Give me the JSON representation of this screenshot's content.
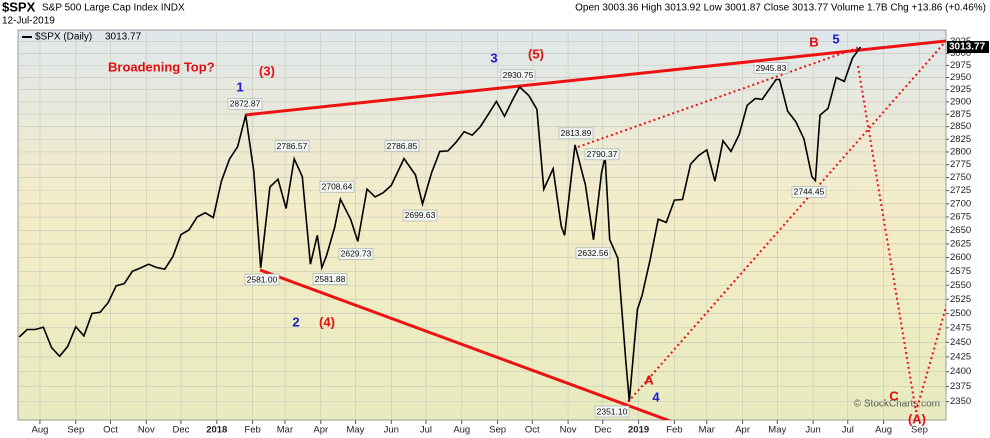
{
  "chart_data": {
    "type": "line",
    "title": "$SPX",
    "subtitle": "S&P 500 Large Cap Index INDX",
    "date": "12-Jul-2019",
    "quote": "Open 3003.36 High 3013.92 Low 3001.87 Close 3013.77 Volume 1.7B Chg +13.86 (+0.46%)",
    "watermark": "© StockCharts.com",
    "log": true,
    "grid": true,
    "xlim": [
      "2017-07-13",
      "2019-09-24"
    ],
    "ylim": [
      2320,
      3050
    ],
    "yticks": [
      2350,
      2375,
      2400,
      2425,
      2450,
      2475,
      2500,
      2525,
      2550,
      2575,
      2600,
      2625,
      2650,
      2675,
      2700,
      2725,
      2750,
      2775,
      2800,
      2825,
      2850,
      2875,
      2900,
      2925,
      2950,
      2975,
      3000,
      3025
    ],
    "xticks": [
      {
        "value": "2017-08-01",
        "label": "Aug"
      },
      {
        "value": "2017-09-01",
        "label": "Sep"
      },
      {
        "value": "2017-10-01",
        "label": "Oct"
      },
      {
        "value": "2017-11-01",
        "label": "Nov"
      },
      {
        "value": "2017-12-01",
        "label": "Dec"
      },
      {
        "value": "2018-01-01",
        "label": "2018"
      },
      {
        "value": "2018-02-01",
        "label": "Feb"
      },
      {
        "value": "2018-03-01",
        "label": "Mar"
      },
      {
        "value": "2018-04-01",
        "label": "Apr"
      },
      {
        "value": "2018-05-01",
        "label": "May"
      },
      {
        "value": "2018-06-01",
        "label": "Jun"
      },
      {
        "value": "2018-07-01",
        "label": "Jul"
      },
      {
        "value": "2018-08-01",
        "label": "Aug"
      },
      {
        "value": "2018-09-01",
        "label": "Sep"
      },
      {
        "value": "2018-10-01",
        "label": "Oct"
      },
      {
        "value": "2018-11-01",
        "label": "Nov"
      },
      {
        "value": "2018-12-01",
        "label": "Dec"
      },
      {
        "value": "2019-01-01",
        "label": "2019"
      },
      {
        "value": "2019-02-01",
        "label": "Feb"
      },
      {
        "value": "2019-03-01",
        "label": "Mar"
      },
      {
        "value": "2019-04-01",
        "label": "Apr"
      },
      {
        "value": "2019-05-01",
        "label": "May"
      },
      {
        "value": "2019-06-01",
        "label": "Jun"
      },
      {
        "value": "2019-07-01",
        "label": "Jul"
      },
      {
        "value": "2019-08-01",
        "label": "Aug"
      },
      {
        "value": "2019-09-01",
        "label": "Sep"
      }
    ],
    "x": [
      "2017-07-14",
      "2017-07-21",
      "2017-07-28",
      "2017-08-04",
      "2017-08-11",
      "2017-08-18",
      "2017-08-25",
      "2017-09-01",
      "2017-09-08",
      "2017-09-15",
      "2017-09-22",
      "2017-09-29",
      "2017-10-06",
      "2017-10-13",
      "2017-10-20",
      "2017-10-27",
      "2017-11-03",
      "2017-11-10",
      "2017-11-17",
      "2017-11-24",
      "2017-12-01",
      "2017-12-08",
      "2017-12-15",
      "2017-12-22",
      "2017-12-29",
      "2018-01-05",
      "2018-01-12",
      "2018-01-19",
      "2018-01-26",
      "2018-02-02",
      "2018-02-08",
      "2018-02-16",
      "2018-02-23",
      "2018-03-02",
      "2018-03-09",
      "2018-03-16",
      "2018-03-23",
      "2018-03-29",
      "2018-04-02",
      "2018-04-06",
      "2018-04-13",
      "2018-04-18",
      "2018-04-27",
      "2018-05-03",
      "2018-05-11",
      "2018-05-18",
      "2018-05-25",
      "2018-06-01",
      "2018-06-12",
      "2018-06-22",
      "2018-06-28",
      "2018-07-06",
      "2018-07-13",
      "2018-07-20",
      "2018-07-27",
      "2018-08-03",
      "2018-08-10",
      "2018-08-17",
      "2018-08-24",
      "2018-08-31",
      "2018-09-07",
      "2018-09-14",
      "2018-09-20",
      "2018-09-28",
      "2018-10-05",
      "2018-10-11",
      "2018-10-19",
      "2018-10-26",
      "2018-10-29",
      "2018-11-07",
      "2018-11-16",
      "2018-11-23",
      "2018-11-30",
      "2018-12-03",
      "2018-12-07",
      "2018-12-14",
      "2018-12-21",
      "2018-12-24",
      "2018-12-31",
      "2019-01-04",
      "2019-01-11",
      "2019-01-18",
      "2019-01-25",
      "2019-02-01",
      "2019-02-08",
      "2019-02-15",
      "2019-02-22",
      "2019-03-01",
      "2019-03-08",
      "2019-03-15",
      "2019-03-22",
      "2019-03-29",
      "2019-04-05",
      "2019-04-12",
      "2019-04-18",
      "2019-04-30",
      "2019-05-03",
      "2019-05-10",
      "2019-05-17",
      "2019-05-24",
      "2019-05-31",
      "2019-06-03",
      "2019-06-07",
      "2019-06-14",
      "2019-06-21",
      "2019-06-28",
      "2019-07-05",
      "2019-07-12"
    ],
    "series": [
      {
        "name": "$SPX (Daily)",
        "color": "#000000",
        "values": [
          2459,
          2472,
          2472,
          2476,
          2441,
          2426,
          2443,
          2477,
          2461,
          2500,
          2502,
          2519,
          2549,
          2553,
          2575,
          2581,
          2588,
          2582,
          2579,
          2602,
          2642,
          2651,
          2675,
          2683,
          2674,
          2743,
          2786,
          2810,
          2872.87,
          2762,
          2581,
          2732,
          2747,
          2691,
          2786.57,
          2752,
          2588,
          2641,
          2581.88,
          2604,
          2656,
          2708.64,
          2670,
          2629.73,
          2728,
          2713,
          2721,
          2735,
          2786.85,
          2755,
          2699.63,
          2760,
          2801,
          2802,
          2819,
          2840,
          2833,
          2850,
          2875,
          2901,
          2871,
          2904,
          2930.75,
          2913,
          2885,
          2728,
          2767,
          2658,
          2641,
          2813.89,
          2736,
          2632.56,
          2760,
          2790.37,
          2633,
          2599,
          2416,
          2351.1,
          2507,
          2532,
          2596,
          2671,
          2665,
          2707,
          2708,
          2776,
          2793,
          2804,
          2743,
          2822,
          2801,
          2834,
          2893,
          2907,
          2905,
          2945.83,
          2946,
          2881,
          2860,
          2826,
          2752,
          2744.45,
          2873,
          2887,
          2950,
          2942,
          2990,
          3013.77
        ]
      }
    ],
    "point_labels": {
      "values": [
        2872.87,
        2581,
        2786.57,
        2581.88,
        2708.64,
        2629.73,
        2786.85,
        2699.63,
        2930.75,
        2813.89,
        2790.37,
        2632.56,
        2351.1,
        2945.83,
        2744.45
      ],
      "value_labels": [
        "2872.87",
        "2581.00",
        "2786.57",
        "2581.88",
        "2708.64",
        "2629.73",
        "2786.85",
        "2699.63",
        "2930.75",
        "2813.89",
        "2790.37",
        "2632.56",
        "2351.10",
        "2945.83",
        "2744.45"
      ]
    },
    "annotations": [
      "Broadening Top?",
      "(3)",
      "1",
      "2",
      "(4)",
      "3",
      "(5)",
      "A",
      "4",
      "B",
      "5",
      "C",
      "(A)"
    ]
  }
}
